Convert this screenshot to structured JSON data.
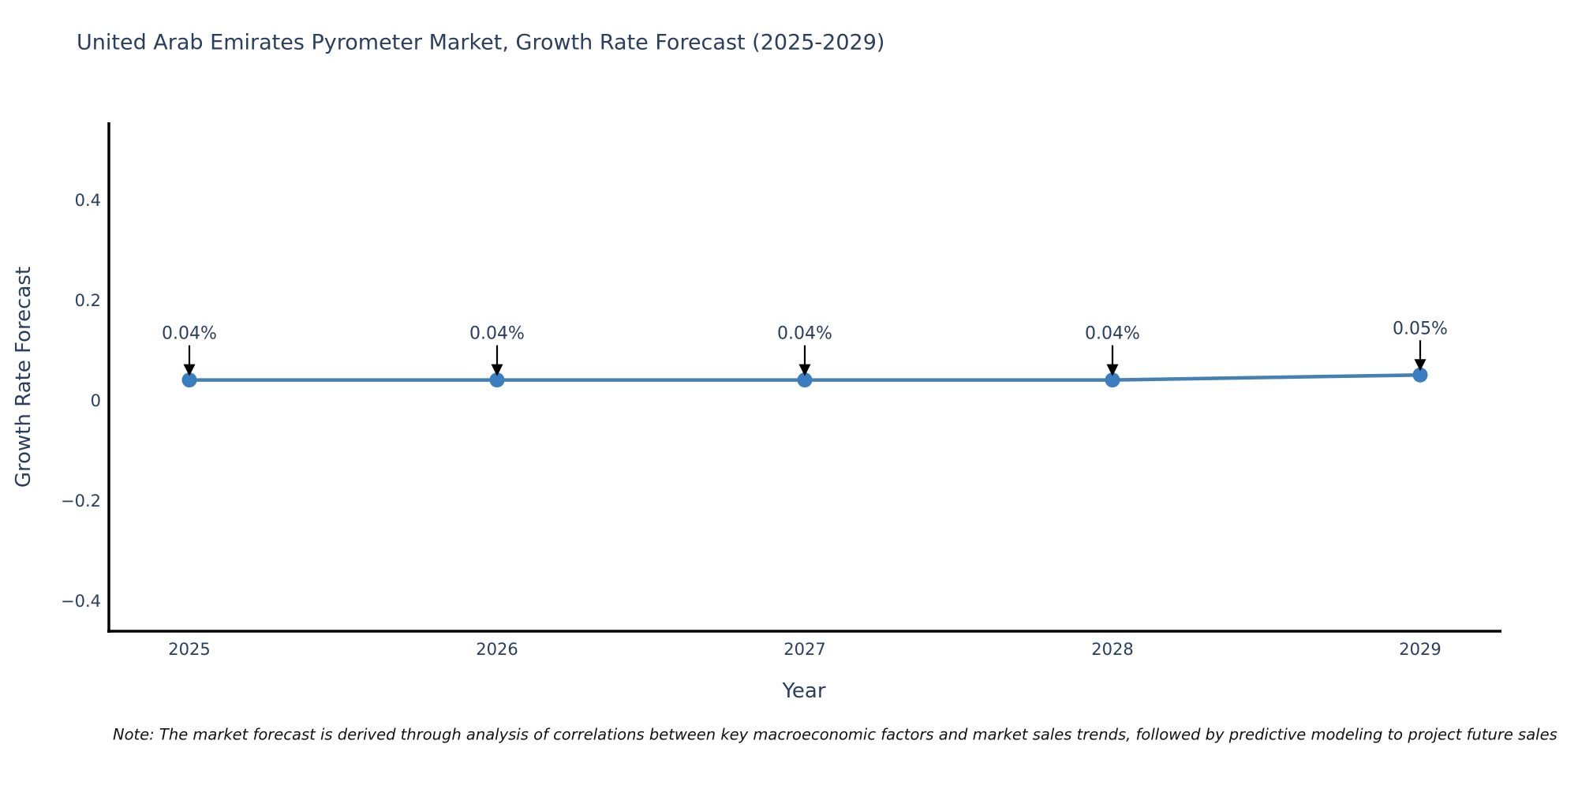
{
  "note": "Note: The market forecast is derived through analysis of correlations between key macroeconomic factors and market sales trends, followed by predictive modeling to project future sales",
  "chart_data": {
    "type": "line",
    "title": "United Arab Emirates Pyrometer Market, Growth Rate Forecast (2025-2029)",
    "xlabel": "Year",
    "ylabel": "Growth Rate Forecast",
    "categories": [
      "2025",
      "2026",
      "2027",
      "2028",
      "2029"
    ],
    "series": [
      {
        "name": "Growth Rate Forecast",
        "values": [
          0.04,
          0.04,
          0.04,
          0.04,
          0.05
        ]
      }
    ],
    "point_labels": [
      "0.04%",
      "0.04%",
      "0.04%",
      "0.04%",
      "0.05%"
    ],
    "y_tick_labels": [
      "0.4",
      "0.2",
      "0",
      "−0.2",
      "−0.4"
    ],
    "y_tick_values": [
      0.4,
      0.2,
      0,
      -0.2,
      -0.4
    ],
    "ylim": [
      -0.46,
      0.55
    ],
    "grid": false,
    "legend_position": "none",
    "colors": {
      "line": "#4580b4",
      "marker": "#3a7ebf",
      "axis": "#000000",
      "annotation_arrow": "#000000",
      "text": "#2a3f5f"
    }
  }
}
